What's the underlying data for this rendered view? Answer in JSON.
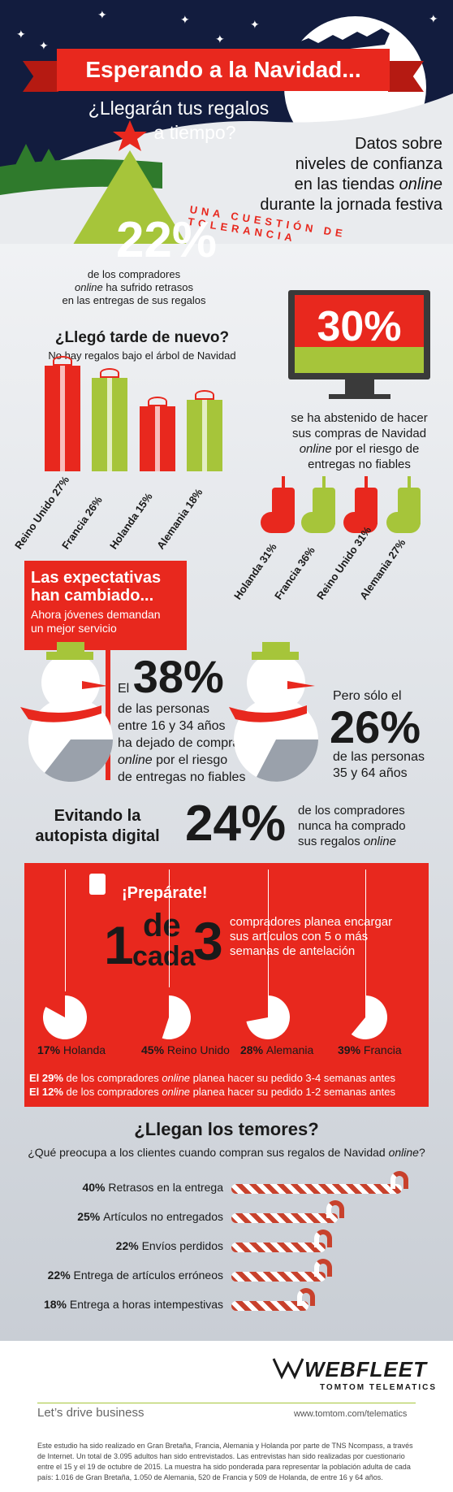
{
  "header": {
    "title": "Esperando a la Navidad...",
    "subtitle_line1": "¿Llegarán tus regalos",
    "subtitle_line2": "a tiempo?",
    "description_line1": "Datos sobre",
    "description_line2": "niveles de confianza",
    "description_line3_pre": "en las tiendas ",
    "description_line3_em": "online",
    "description_line4": "durante la jornada festiva",
    "bunting": "UNA CUESTIÓN DE TOLERANCIA"
  },
  "delays": {
    "percent": "22%",
    "line1": "de los compradores",
    "line2_em": "online",
    "line2_post": " ha sufrido retrasos",
    "line3": "en las entregas de sus regalos"
  },
  "late_again": {
    "title": "¿Llegó tarde de nuevo?",
    "subtitle": "No hay regalos bajo el árbol de Navidad",
    "gifts": [
      {
        "country": "Reino Unido",
        "value": "27%",
        "color": "#e8281e"
      },
      {
        "country": "Francia",
        "value": "26%",
        "color": "#a6c53a"
      },
      {
        "country": "Holanda",
        "value": "15%",
        "color": "#e8281e"
      },
      {
        "country": "Alemania",
        "value": "18%",
        "color": "#a6c53a"
      }
    ]
  },
  "abstained": {
    "percent": "30%",
    "line1": "se ha abstenido de hacer",
    "line2": "sus compras de Navidad",
    "line3_em": "online",
    "line3_post": " por el riesgo de",
    "line4": "entregas no fiables",
    "socks": [
      {
        "country": "Holanda",
        "value": "31%",
        "color": "#e8281e"
      },
      {
        "country": "Francia",
        "value": "36%",
        "color": "#a6c53a"
      },
      {
        "country": "Reino Unido",
        "value": "31%",
        "color": "#e8281e"
      },
      {
        "country": "Alemania",
        "value": "27%",
        "color": "#a6c53a"
      }
    ]
  },
  "expectations": {
    "title_line1": "Las expectativas",
    "title_line2": "han cambiado...",
    "sub_line1": "Ahora jóvenes demandan",
    "sub_line2": "un mejor servicio",
    "young_pre": "El",
    "young_pct": "38%",
    "young_line1": "de las personas",
    "young_line2": "entre 16 y 34 años",
    "young_line3": "ha dejado de comprar",
    "young_line4_em": "online",
    "young_line4_post": " por el riesgo",
    "young_line5": "de entregas no fiables",
    "old_pre": "Pero sólo el",
    "old_pct": "26%",
    "old_line1": "de las personas",
    "old_line2": "35 y 64 años"
  },
  "highway": {
    "title_line1": "Evitando la",
    "title_line2": "autopista digital",
    "percent": "24%",
    "line1": "de los compradores",
    "line2": "nunca ha comprado",
    "line3_pre": "sus regalos ",
    "line3_em": "online"
  },
  "prepare": {
    "title": "¡Prepárate!",
    "one": "1",
    "de": "de",
    "cada": "cada",
    "three": "3",
    "line1": "compradores planea encargar",
    "line2": "sus artículos con 5 o más",
    "line3": "semanas de antelación",
    "ornaments": [
      {
        "value": "17%",
        "country": "Holanda",
        "fraction": 0.17
      },
      {
        "value": "45%",
        "country": "Reino Unido",
        "fraction": 0.45
      },
      {
        "value": "28%",
        "country": "Alemania",
        "fraction": 0.28
      },
      {
        "value": "39%",
        "country": "Francia",
        "fraction": 0.39
      }
    ],
    "note1_pct": "El 29%",
    "note1_pre": " de los compradores ",
    "note1_em": "online",
    "note1_post": " planea hacer su pedido 3-4 semanas antes",
    "note2_pct": "El 12%",
    "note2_pre": " de los compradores ",
    "note2_em": "online",
    "note2_post": " planea hacer su pedido 1-2 semanas antes"
  },
  "fears": {
    "title": "¿Llegan los temores?",
    "question_pre": "¿Qué preocupa a los clientes cuando compran sus regalos de Navidad ",
    "question_em": "online",
    "question_post": "?",
    "items": [
      {
        "pct": "40%",
        "label": "Retrasos en la entrega",
        "value": 40
      },
      {
        "pct": "25%",
        "label": "Artículos no entregados",
        "value": 25
      },
      {
        "pct": "22%",
        "label": "Envíos perdidos",
        "value": 22
      },
      {
        "pct": "22%",
        "label": "Entrega de artículos erróneos",
        "value": 22
      },
      {
        "pct": "18%",
        "label": "Entrega a horas intempestivas",
        "value": 18
      }
    ]
  },
  "footer": {
    "brand": "WEBFLEET",
    "brand_sub": "TOMTOM TELEMATICS",
    "tagline": "Let’s drive business",
    "url": "www.tomtom.com/telematics",
    "disclaimer": "Este estudio ha sido realizado en Gran Bretaña, Francia, Alemania y Holanda por parte de TNS Ncompass, a través de Internet. Un total de 3.095 adultos han sido entrevistados. Las entrevistas han sido realizadas por cuestionario entre el 15 y el 19 de octubre de 2015. La muestra ha sido ponderada para representar la población adulta de cada país: 1.016 de Gran Bretaña, 1.050 de Alemania, 520 de Francia y 509 de Holanda, de entre 16 y 64 años."
  },
  "colors": {
    "red": "#e8281e",
    "green": "#a6c53a",
    "navy": "#121c3e"
  }
}
